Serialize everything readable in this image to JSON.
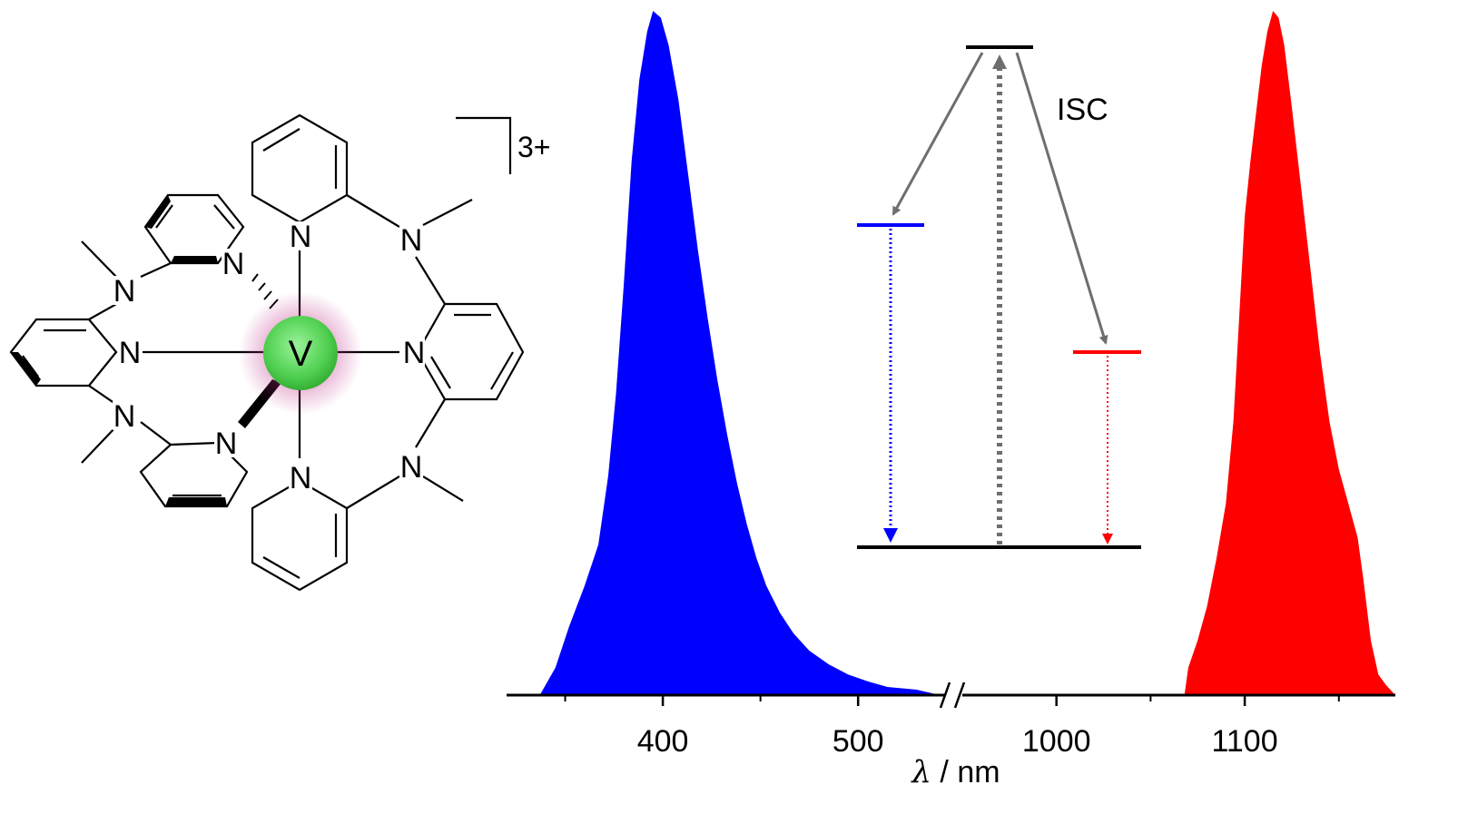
{
  "complex": {
    "metal_label": "V",
    "charge_label": "3+",
    "n_label": "N"
  },
  "colors": {
    "blue": "#0000ff",
    "red": "#ff0000",
    "gray_arrow": "#6e6e6e",
    "gray_dotted": "#6e6e6e",
    "black": "#000000",
    "metal_fill": "#5fd05f",
    "glow": "#c0308a"
  },
  "jablonski": {
    "isc_label": "ISC"
  },
  "chart_data": {
    "type": "area",
    "xlabel_symbol": "λ",
    "xlabel_unit": " / nm",
    "axis_break": true,
    "segments": [
      {
        "xlim": [
          320,
          545
        ],
        "ticks": [
          400,
          500
        ],
        "minor_ticks": [
          350,
          450
        ]
      },
      {
        "xlim": [
          950,
          1180
        ],
        "ticks": [
          1000,
          1100
        ],
        "minor_ticks": [
          1050,
          1150
        ]
      }
    ],
    "ylim": [
      0,
      1
    ],
    "series": [
      {
        "color": "#0000ff",
        "segment": 0,
        "points": [
          [
            337,
            0.0
          ],
          [
            345,
            0.04
          ],
          [
            352,
            0.1
          ],
          [
            360,
            0.16
          ],
          [
            367,
            0.22
          ],
          [
            372,
            0.32
          ],
          [
            376,
            0.44
          ],
          [
            380,
            0.6
          ],
          [
            384,
            0.78
          ],
          [
            388,
            0.9
          ],
          [
            392,
            0.97
          ],
          [
            395,
            1.0
          ],
          [
            399,
            0.99
          ],
          [
            403,
            0.95
          ],
          [
            408,
            0.87
          ],
          [
            413,
            0.76
          ],
          [
            418,
            0.65
          ],
          [
            423,
            0.55
          ],
          [
            428,
            0.46
          ],
          [
            433,
            0.38
          ],
          [
            438,
            0.31
          ],
          [
            443,
            0.25
          ],
          [
            448,
            0.2
          ],
          [
            453,
            0.16
          ],
          [
            460,
            0.12
          ],
          [
            467,
            0.09
          ],
          [
            475,
            0.065
          ],
          [
            485,
            0.045
          ],
          [
            495,
            0.03
          ],
          [
            505,
            0.02
          ],
          [
            515,
            0.012
          ],
          [
            530,
            0.008
          ],
          [
            542,
            0.0
          ]
        ]
      },
      {
        "color": "#ff0000",
        "segment": 1,
        "points": [
          [
            1068,
            0.0
          ],
          [
            1070,
            0.04
          ],
          [
            1075,
            0.08
          ],
          [
            1080,
            0.13
          ],
          [
            1085,
            0.2
          ],
          [
            1090,
            0.28
          ],
          [
            1094,
            0.4
          ],
          [
            1097,
            0.55
          ],
          [
            1100,
            0.7
          ],
          [
            1103,
            0.78
          ],
          [
            1106,
            0.85
          ],
          [
            1109,
            0.92
          ],
          [
            1112,
            0.97
          ],
          [
            1115,
            1.0
          ],
          [
            1118,
            0.99
          ],
          [
            1121,
            0.95
          ],
          [
            1125,
            0.86
          ],
          [
            1130,
            0.74
          ],
          [
            1135,
            0.62
          ],
          [
            1140,
            0.5
          ],
          [
            1145,
            0.4
          ],
          [
            1150,
            0.33
          ],
          [
            1155,
            0.28
          ],
          [
            1160,
            0.23
          ],
          [
            1163,
            0.17
          ],
          [
            1167,
            0.08
          ],
          [
            1171,
            0.03
          ],
          [
            1175,
            0.015
          ],
          [
            1180,
            0.0
          ]
        ]
      }
    ]
  }
}
